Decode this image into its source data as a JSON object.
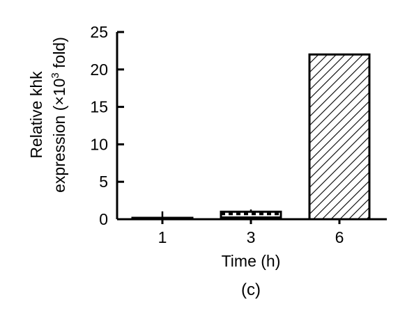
{
  "chart_data": {
    "type": "bar",
    "categories": [
      "1",
      "3",
      "6"
    ],
    "values": [
      0.15,
      1.0,
      22.0
    ],
    "error_bars": [
      0.9,
      0.3,
      0.0
    ],
    "ylabel_line1": "Relative khk",
    "ylabel_line2_prefix": "expression (×10",
    "ylabel_superscript": "3",
    "ylabel_line2_suffix": " fold)",
    "xlabel": "Time (h)",
    "caption": "(c)",
    "ylim": [
      0,
      25
    ],
    "yticks": [
      0,
      5,
      10,
      15,
      20,
      25
    ],
    "bar_fills": [
      "solid",
      "checkered",
      "hatched"
    ],
    "grid": false,
    "colors": {
      "ink": "#000000",
      "background": "#ffffff"
    }
  }
}
